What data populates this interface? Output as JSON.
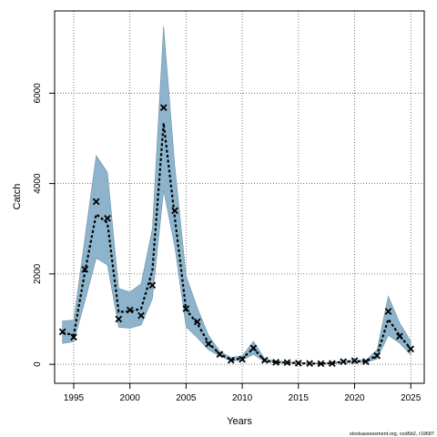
{
  "chart_data": {
    "type": "line",
    "xlabel": "Years",
    "ylabel": "Catch",
    "xlim": [
      1993.3,
      2026.2
    ],
    "ylim": [
      -420,
      7820
    ],
    "x_ticks": [
      1995,
      2000,
      2005,
      2010,
      2015,
      2020,
      2025
    ],
    "y_ticks": [
      0,
      2000,
      4000,
      6000
    ],
    "grid": true,
    "grid_style": "dotted",
    "band_color": "#8db4cc",
    "line_color": "#000000",
    "marker": "x",
    "x": [
      1994,
      1995,
      1996,
      1997,
      1998,
      1999,
      2000,
      2001,
      2002,
      2003,
      2004,
      2005,
      2006,
      2007,
      2008,
      2009,
      2010,
      2011,
      2012,
      2013,
      2014,
      2015,
      2016,
      2017,
      2018,
      2019,
      2020,
      2021,
      2022,
      2023,
      2024,
      2025
    ],
    "series": [
      {
        "type": "band",
        "lower": [
          460,
          500,
          1400,
          2350,
          2200,
          820,
          800,
          870,
          1450,
          3850,
          2600,
          830,
          590,
          320,
          180,
          75,
          90,
          220,
          55,
          30,
          25,
          15,
          10,
          10,
          15,
          35,
          40,
          40,
          120,
          640,
          470,
          210
        ],
        "upper": [
          960,
          980,
          2800,
          4620,
          4250,
          1680,
          1600,
          1780,
          3000,
          7480,
          4380,
          1960,
          1250,
          640,
          290,
          150,
          190,
          510,
          120,
          70,
          60,
          40,
          25,
          30,
          40,
          80,
          100,
          90,
          320,
          1510,
          920,
          510
        ]
      },
      {
        "type": "line",
        "values": [
          700,
          650,
          2050,
          3320,
          3130,
          1160,
          1170,
          1230,
          2070,
          5340,
          3240,
          1210,
          900,
          470,
          230,
          100,
          130,
          350,
          80,
          45,
          35,
          25,
          15,
          15,
          25,
          55,
          65,
          65,
          200,
          1000,
          640,
          340
        ]
      },
      {
        "type": "scatter",
        "values": [
          720,
          600,
          2100,
          3600,
          3230,
          1000,
          1200,
          1080,
          1750,
          5680,
          3400,
          1230,
          940,
          450,
          220,
          90,
          110,
          360,
          90,
          45,
          40,
          25,
          20,
          15,
          20,
          60,
          80,
          60,
          190,
          1170,
          620,
          340
        ]
      }
    ]
  },
  "credit": "stockassessment.org, cod5b2, r19687"
}
